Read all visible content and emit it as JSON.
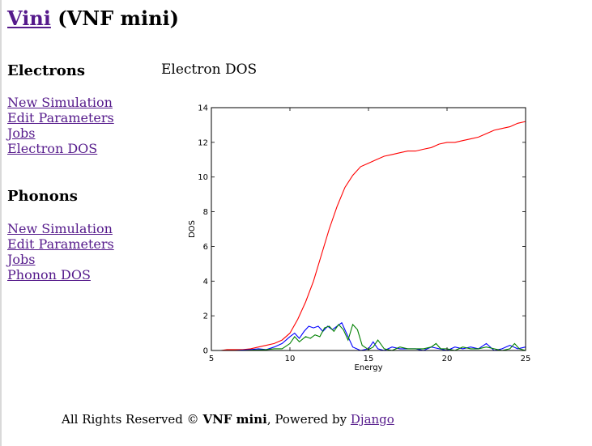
{
  "header": {
    "title_link": "Vini",
    "title_rest": " (VNF mini)"
  },
  "sidebar": {
    "electrons": {
      "heading": "Electrons",
      "items": [
        "New Simulation",
        "Edit Parameters",
        "Jobs",
        "Electron DOS"
      ]
    },
    "phonons": {
      "heading": "Phonons",
      "items": [
        "New Simulation",
        "Edit Parameters",
        "Jobs",
        "Phonon DOS"
      ]
    }
  },
  "main": {
    "title": "Electron DOS"
  },
  "chart_data": {
    "type": "line",
    "title": "",
    "xlabel": "Energy",
    "ylabel": "DOS",
    "xlim": [
      5,
      25
    ],
    "ylim": [
      0,
      14
    ],
    "xticks": [
      5,
      10,
      15,
      20,
      25
    ],
    "yticks": [
      0,
      2,
      4,
      6,
      8,
      10,
      12,
      14
    ],
    "grid": false,
    "series": [
      {
        "color": "#ff0000",
        "x": [
          5.6,
          6.0,
          7.0,
          7.5,
          8.0,
          8.5,
          9.0,
          9.5,
          10.0,
          10.5,
          11.0,
          11.5,
          12.0,
          12.5,
          13.0,
          13.5,
          14.0,
          14.5,
          15.0,
          15.5,
          16.0,
          16.5,
          17.0,
          17.5,
          18.0,
          18.5,
          19.0,
          19.5,
          20.0,
          20.5,
          21.0,
          21.5,
          22.0,
          22.5,
          23.0,
          23.5,
          24.0,
          24.5,
          25.0
        ],
        "y": [
          0,
          0.05,
          0.05,
          0.1,
          0.2,
          0.3,
          0.4,
          0.6,
          1.0,
          1.8,
          2.8,
          4.0,
          5.5,
          7.0,
          8.3,
          9.4,
          10.1,
          10.6,
          10.8,
          11.0,
          11.2,
          11.3,
          11.4,
          11.5,
          11.5,
          11.6,
          11.7,
          11.9,
          12.0,
          12.0,
          12.1,
          12.2,
          12.3,
          12.5,
          12.7,
          12.8,
          12.9,
          13.1,
          13.2
        ]
      },
      {
        "color": "#0000ff",
        "x": [
          5.6,
          6.5,
          7.5,
          8.0,
          8.5,
          9.0,
          9.5,
          10.0,
          10.3,
          10.6,
          10.9,
          11.2,
          11.5,
          11.8,
          12.1,
          12.4,
          12.7,
          13.0,
          13.3,
          13.6,
          14.0,
          14.5,
          15.0,
          15.3,
          15.6,
          16.0,
          16.5,
          17.0,
          17.5,
          18.0,
          18.5,
          19.0,
          19.5,
          20.0,
          20.5,
          21.0,
          21.5,
          22.0,
          22.5,
          23.0,
          23.5,
          24.0,
          24.5,
          25.0
        ],
        "y": [
          0,
          0,
          0.05,
          0.1,
          0.05,
          0.2,
          0.4,
          0.8,
          1.0,
          0.7,
          1.1,
          1.4,
          1.3,
          1.4,
          1.1,
          1.4,
          1.2,
          1.4,
          1.6,
          1.0,
          0.2,
          0.0,
          0.1,
          0.5,
          0.1,
          0.0,
          0.2,
          0.1,
          0.1,
          0.1,
          0.0,
          0.2,
          0.1,
          0.0,
          0.2,
          0.1,
          0.2,
          0.1,
          0.4,
          0.0,
          0.1,
          0.3,
          0.1,
          0.2
        ]
      },
      {
        "color": "#008000",
        "x": [
          5.6,
          7.0,
          8.5,
          9.0,
          9.5,
          10.0,
          10.3,
          10.6,
          11.0,
          11.3,
          11.6,
          11.9,
          12.2,
          12.5,
          12.8,
          13.1,
          13.4,
          13.7,
          14.0,
          14.3,
          14.6,
          15.0,
          15.3,
          15.6,
          16.0,
          16.5,
          17.0,
          17.5,
          18.0,
          18.5,
          19.0,
          19.3,
          19.6,
          20.0,
          20.5,
          21.0,
          21.5,
          22.0,
          22.5,
          23.0,
          23.5,
          24.0,
          24.3,
          24.6,
          25.0
        ],
        "y": [
          0,
          0,
          0.05,
          0.1,
          0.1,
          0.4,
          0.8,
          0.5,
          0.8,
          0.7,
          0.9,
          0.8,
          1.3,
          1.4,
          1.1,
          1.5,
          1.2,
          0.6,
          1.5,
          1.2,
          0.3,
          0.05,
          0.2,
          0.6,
          0.1,
          0.0,
          0.2,
          0.1,
          0.1,
          0.1,
          0.2,
          0.4,
          0.1,
          0.1,
          0.0,
          0.2,
          0.1,
          0.1,
          0.2,
          0.1,
          0.0,
          0.1,
          0.4,
          0.1,
          0.0
        ]
      }
    ]
  },
  "footer": {
    "prefix": "All Rights Reserved © ",
    "brand": "VNF mini",
    "middle": ", Powered by ",
    "link": "Django"
  }
}
